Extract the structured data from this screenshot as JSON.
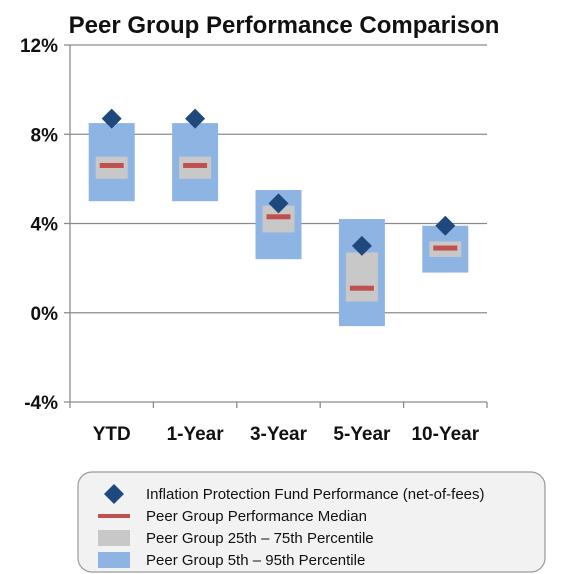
{
  "chart_data": {
    "type": "range-bar",
    "title": "Peer Group Performance Comparison",
    "categories": [
      "YTD",
      "1-Year",
      "3-Year",
      "5-Year",
      "10-Year"
    ],
    "y_ticks": [
      "12%",
      "8%",
      "4%",
      "0%",
      "-4%"
    ],
    "ylim": [
      -4,
      12
    ],
    "grid": true,
    "legend_placement": "bottom",
    "series": [
      {
        "name": "Peer Group 5th – 95th Percentile",
        "low": [
          5.0,
          5.0,
          2.4,
          -0.6,
          1.8
        ],
        "high": [
          8.5,
          8.5,
          5.5,
          4.2,
          3.9
        ]
      },
      {
        "name": "Peer Group 25th – 75th Percentile",
        "low": [
          6.0,
          6.0,
          3.6,
          0.5,
          2.5
        ],
        "high": [
          7.0,
          7.0,
          4.8,
          2.7,
          3.2
        ]
      },
      {
        "name": "Peer Group Performance Median",
        "values": [
          6.6,
          6.6,
          4.3,
          1.1,
          2.9
        ]
      },
      {
        "name": "Inflation Protection Fund Performance (net-of-fees)",
        "values": [
          8.7,
          8.7,
          4.9,
          3.0,
          3.9
        ]
      }
    ],
    "colors": {
      "range_5_95": "#8EB4E3",
      "range_25_75": "#C8C8C8",
      "median": "#C0504D",
      "fund": "#1F497D",
      "grid": "#8C8C8C"
    }
  },
  "legend": {
    "items": [
      {
        "label": "Inflation Protection Fund Performance (net-of-fees)",
        "marker": "diamond"
      },
      {
        "label": "Peer Group Performance Median",
        "marker": "dash"
      },
      {
        "label": "Peer Group 25th – 75th Percentile",
        "marker": "gray-box"
      },
      {
        "label": "Peer Group 5th – 95th Percentile",
        "marker": "blue-box"
      }
    ]
  }
}
